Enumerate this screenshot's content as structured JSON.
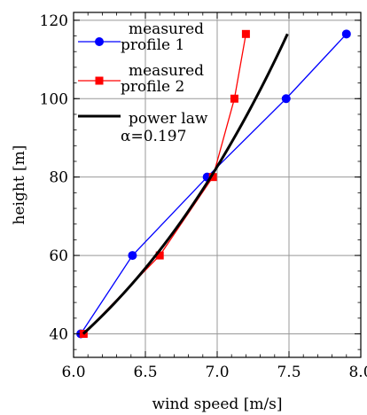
{
  "chart_data": {
    "type": "line",
    "xlabel": "wind speed [m/s]",
    "ylabel": "height [m]",
    "xlim": [
      6.0,
      8.0
    ],
    "ylim": [
      34,
      122
    ],
    "grid": true,
    "legend_placement": "top-left",
    "x_ticks": [
      6.0,
      6.5,
      7.0,
      7.5,
      8.0
    ],
    "x_tick_labels": [
      "6.0",
      "6.5",
      "7.0",
      "7.5",
      "8.0"
    ],
    "y_ticks": [
      40,
      60,
      80,
      100,
      120
    ],
    "y_tick_labels": [
      "40",
      "60",
      "80",
      "100",
      "120"
    ],
    "series": [
      {
        "name": "measured profile 1",
        "legend_lines": [
          "measured",
          "profile 1"
        ],
        "color": "#0000ff",
        "marker": "circle",
        "points": [
          [
            6.05,
            40
          ],
          [
            6.41,
            60
          ],
          [
            6.93,
            80
          ],
          [
            7.48,
            100
          ],
          [
            7.9,
            116.5
          ]
        ]
      },
      {
        "name": "measured profile 2",
        "legend_lines": [
          "measured",
          "profile 2"
        ],
        "color": "#ff0000",
        "marker": "square",
        "points": [
          [
            6.07,
            40
          ],
          [
            6.6,
            60
          ],
          [
            6.97,
            80
          ],
          [
            7.12,
            100
          ],
          [
            7.2,
            116.5
          ]
        ]
      },
      {
        "name": "power law",
        "legend_lines": [
          "power law",
          "α=0.197"
        ],
        "color": "#000000",
        "marker": "none",
        "power_law": {
          "alpha": 0.197,
          "ref_height": 80,
          "ref_speed": 6.955,
          "z_range": [
            40,
            116.5
          ]
        }
      }
    ]
  }
}
